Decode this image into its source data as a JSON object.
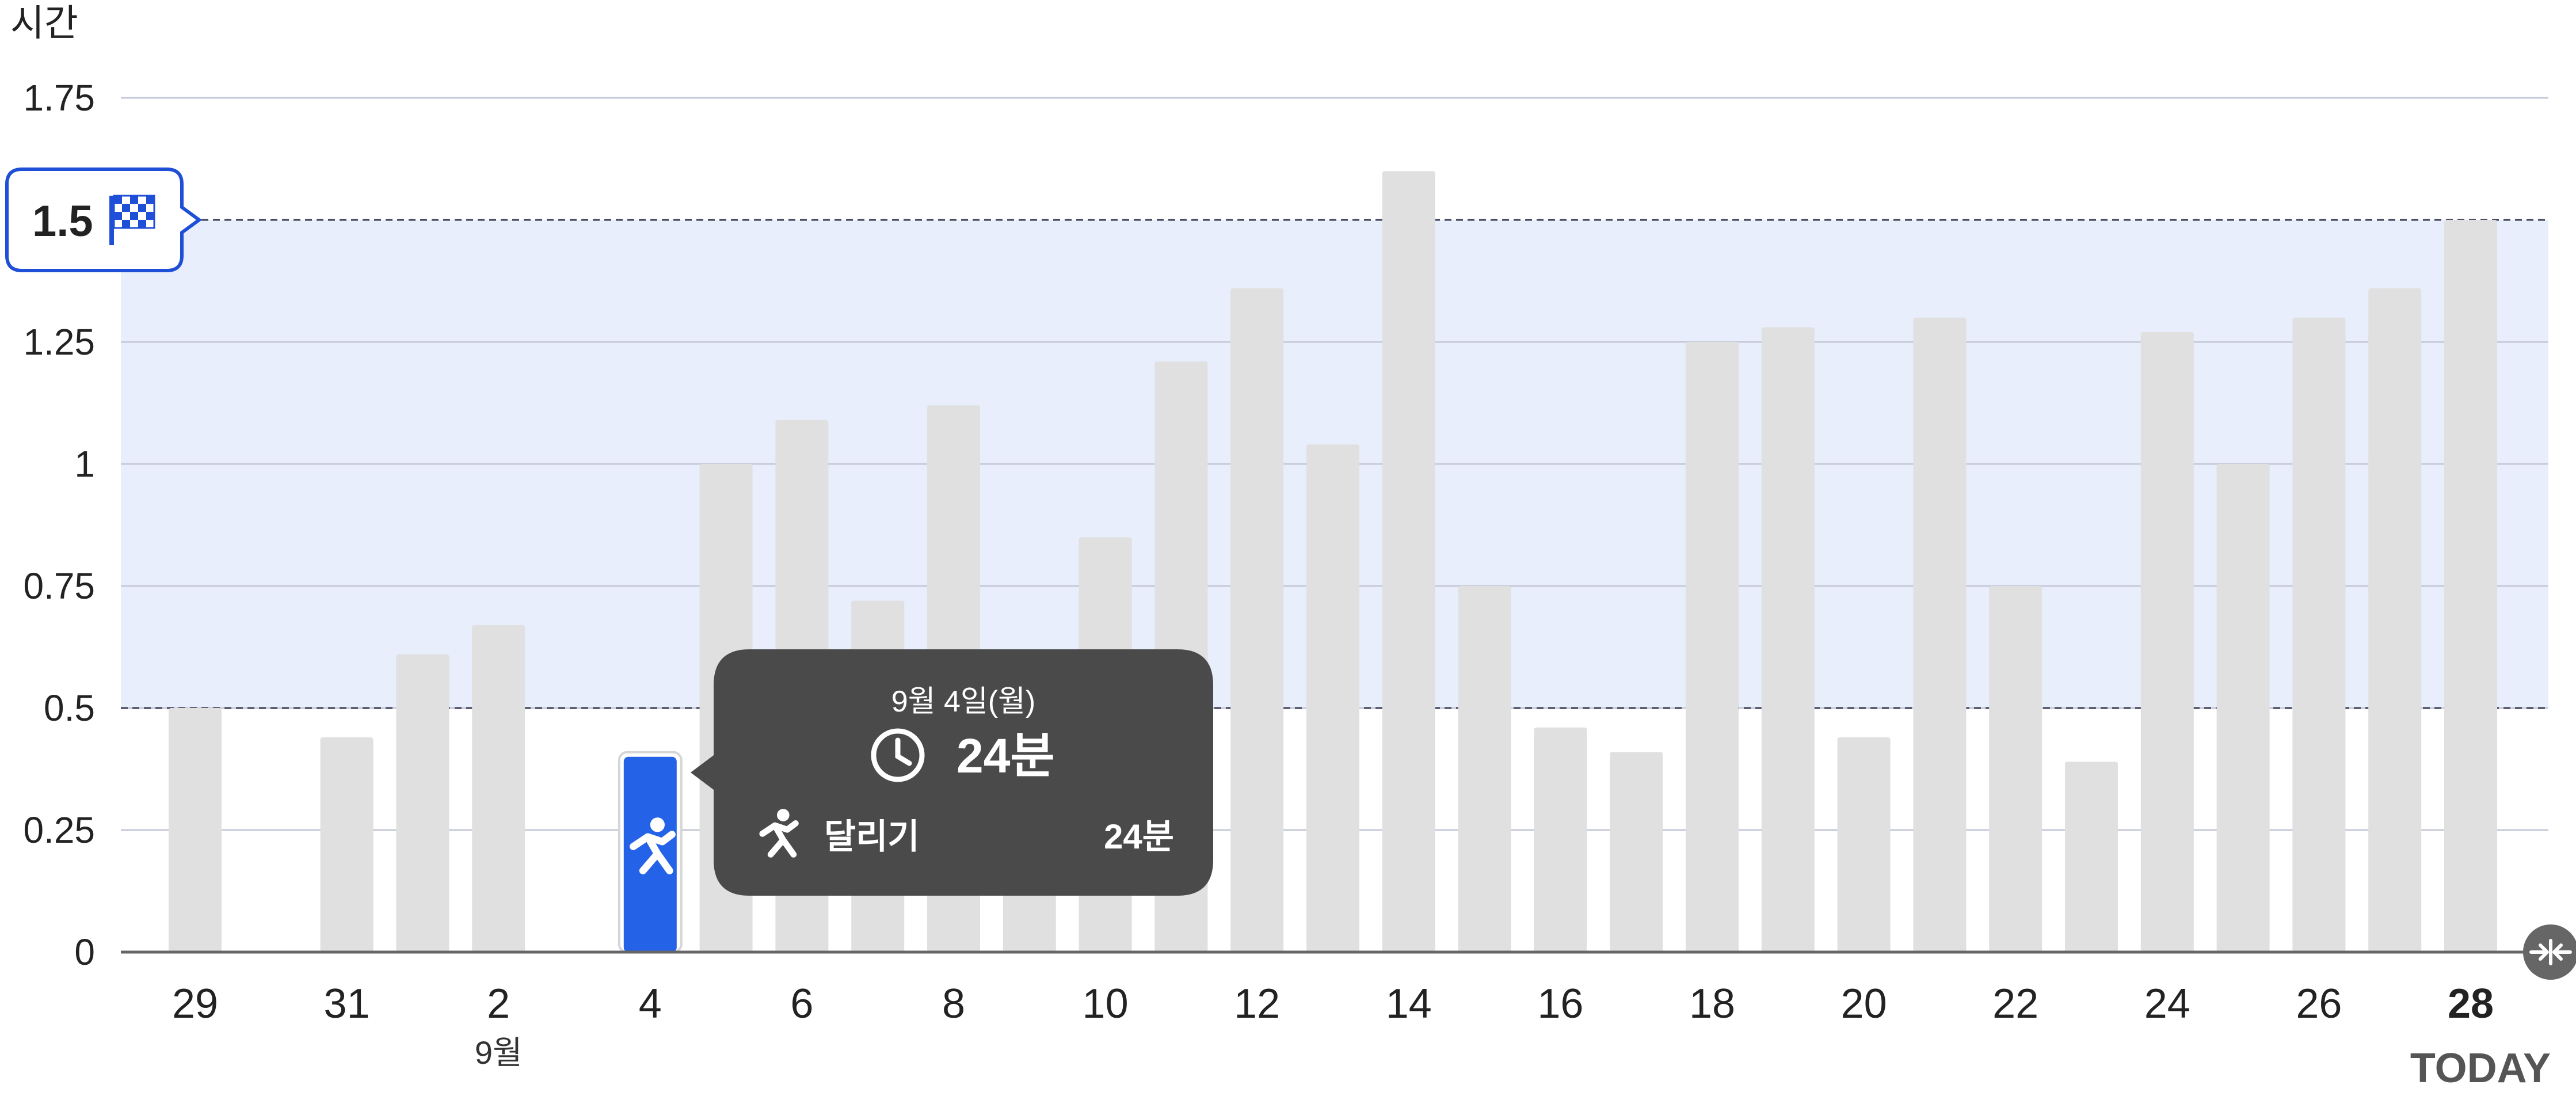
{
  "chart_data": {
    "type": "bar",
    "ylabel": "시간",
    "ylim": [
      0,
      1.75
    ],
    "yticks": [
      {
        "value": 1.75,
        "label": "1.75"
      },
      {
        "value": 1.25,
        "label": "1.25"
      },
      {
        "value": 1,
        "label": "1"
      },
      {
        "value": 0.75,
        "label": "0.75"
      },
      {
        "value": 0.5,
        "label": "0.5"
      },
      {
        "value": 0.25,
        "label": "0.25"
      },
      {
        "value": 0,
        "label": "0"
      }
    ],
    "categories": [
      "29",
      "30",
      "31",
      "1",
      "2",
      "3",
      "4",
      "5",
      "6",
      "7",
      "8",
      "9",
      "10",
      "11",
      "12",
      "13",
      "14",
      "15",
      "16",
      "17",
      "18",
      "19",
      "20",
      "21",
      "22",
      "23",
      "24",
      "25",
      "26",
      "27",
      "28"
    ],
    "values": [
      0.5,
      0,
      0.44,
      0.61,
      0.67,
      0,
      0.4,
      1.0,
      1.09,
      0.72,
      1.12,
      0.55,
      0.85,
      1.21,
      1.36,
      1.04,
      1.6,
      0.75,
      0.46,
      0.41,
      1.25,
      1.28,
      0.44,
      1.3,
      0.75,
      0.39,
      1.27,
      1.0,
      1.3,
      1.36,
      1.5
    ],
    "xticks": [
      {
        "index": 0,
        "label": "29"
      },
      {
        "index": 2,
        "label": "31"
      },
      {
        "index": 4,
        "label": "2",
        "sublabel": "9월"
      },
      {
        "index": 6,
        "label": "4"
      },
      {
        "index": 8,
        "label": "6"
      },
      {
        "index": 10,
        "label": "8"
      },
      {
        "index": 12,
        "label": "10"
      },
      {
        "index": 14,
        "label": "12"
      },
      {
        "index": 16,
        "label": "14"
      },
      {
        "index": 18,
        "label": "16"
      },
      {
        "index": 20,
        "label": "18"
      },
      {
        "index": 22,
        "label": "20"
      },
      {
        "index": 24,
        "label": "22"
      },
      {
        "index": 26,
        "label": "24"
      },
      {
        "index": 28,
        "label": "26"
      },
      {
        "index": 30,
        "label": "28",
        "bold": true
      }
    ],
    "today_label": "TODAY",
    "goal": {
      "value": 1.5,
      "label": "1.5",
      "range": [
        0.5,
        1.5
      ]
    },
    "selected_index": 6,
    "colors": {
      "bar": "#e0e0e0",
      "selected_bar": "#2462e8",
      "goal_band": "#e8eefc",
      "goal_accent": "#1f4fd6",
      "tooltip_bg": "#4a4a4a",
      "grid": "#c6cad8"
    },
    "tooltip": {
      "date": "9월 4일(월)",
      "total": "24분",
      "activity": "달리기",
      "activity_value": "24분",
      "icons": [
        "clock-icon",
        "running-icon"
      ]
    }
  }
}
